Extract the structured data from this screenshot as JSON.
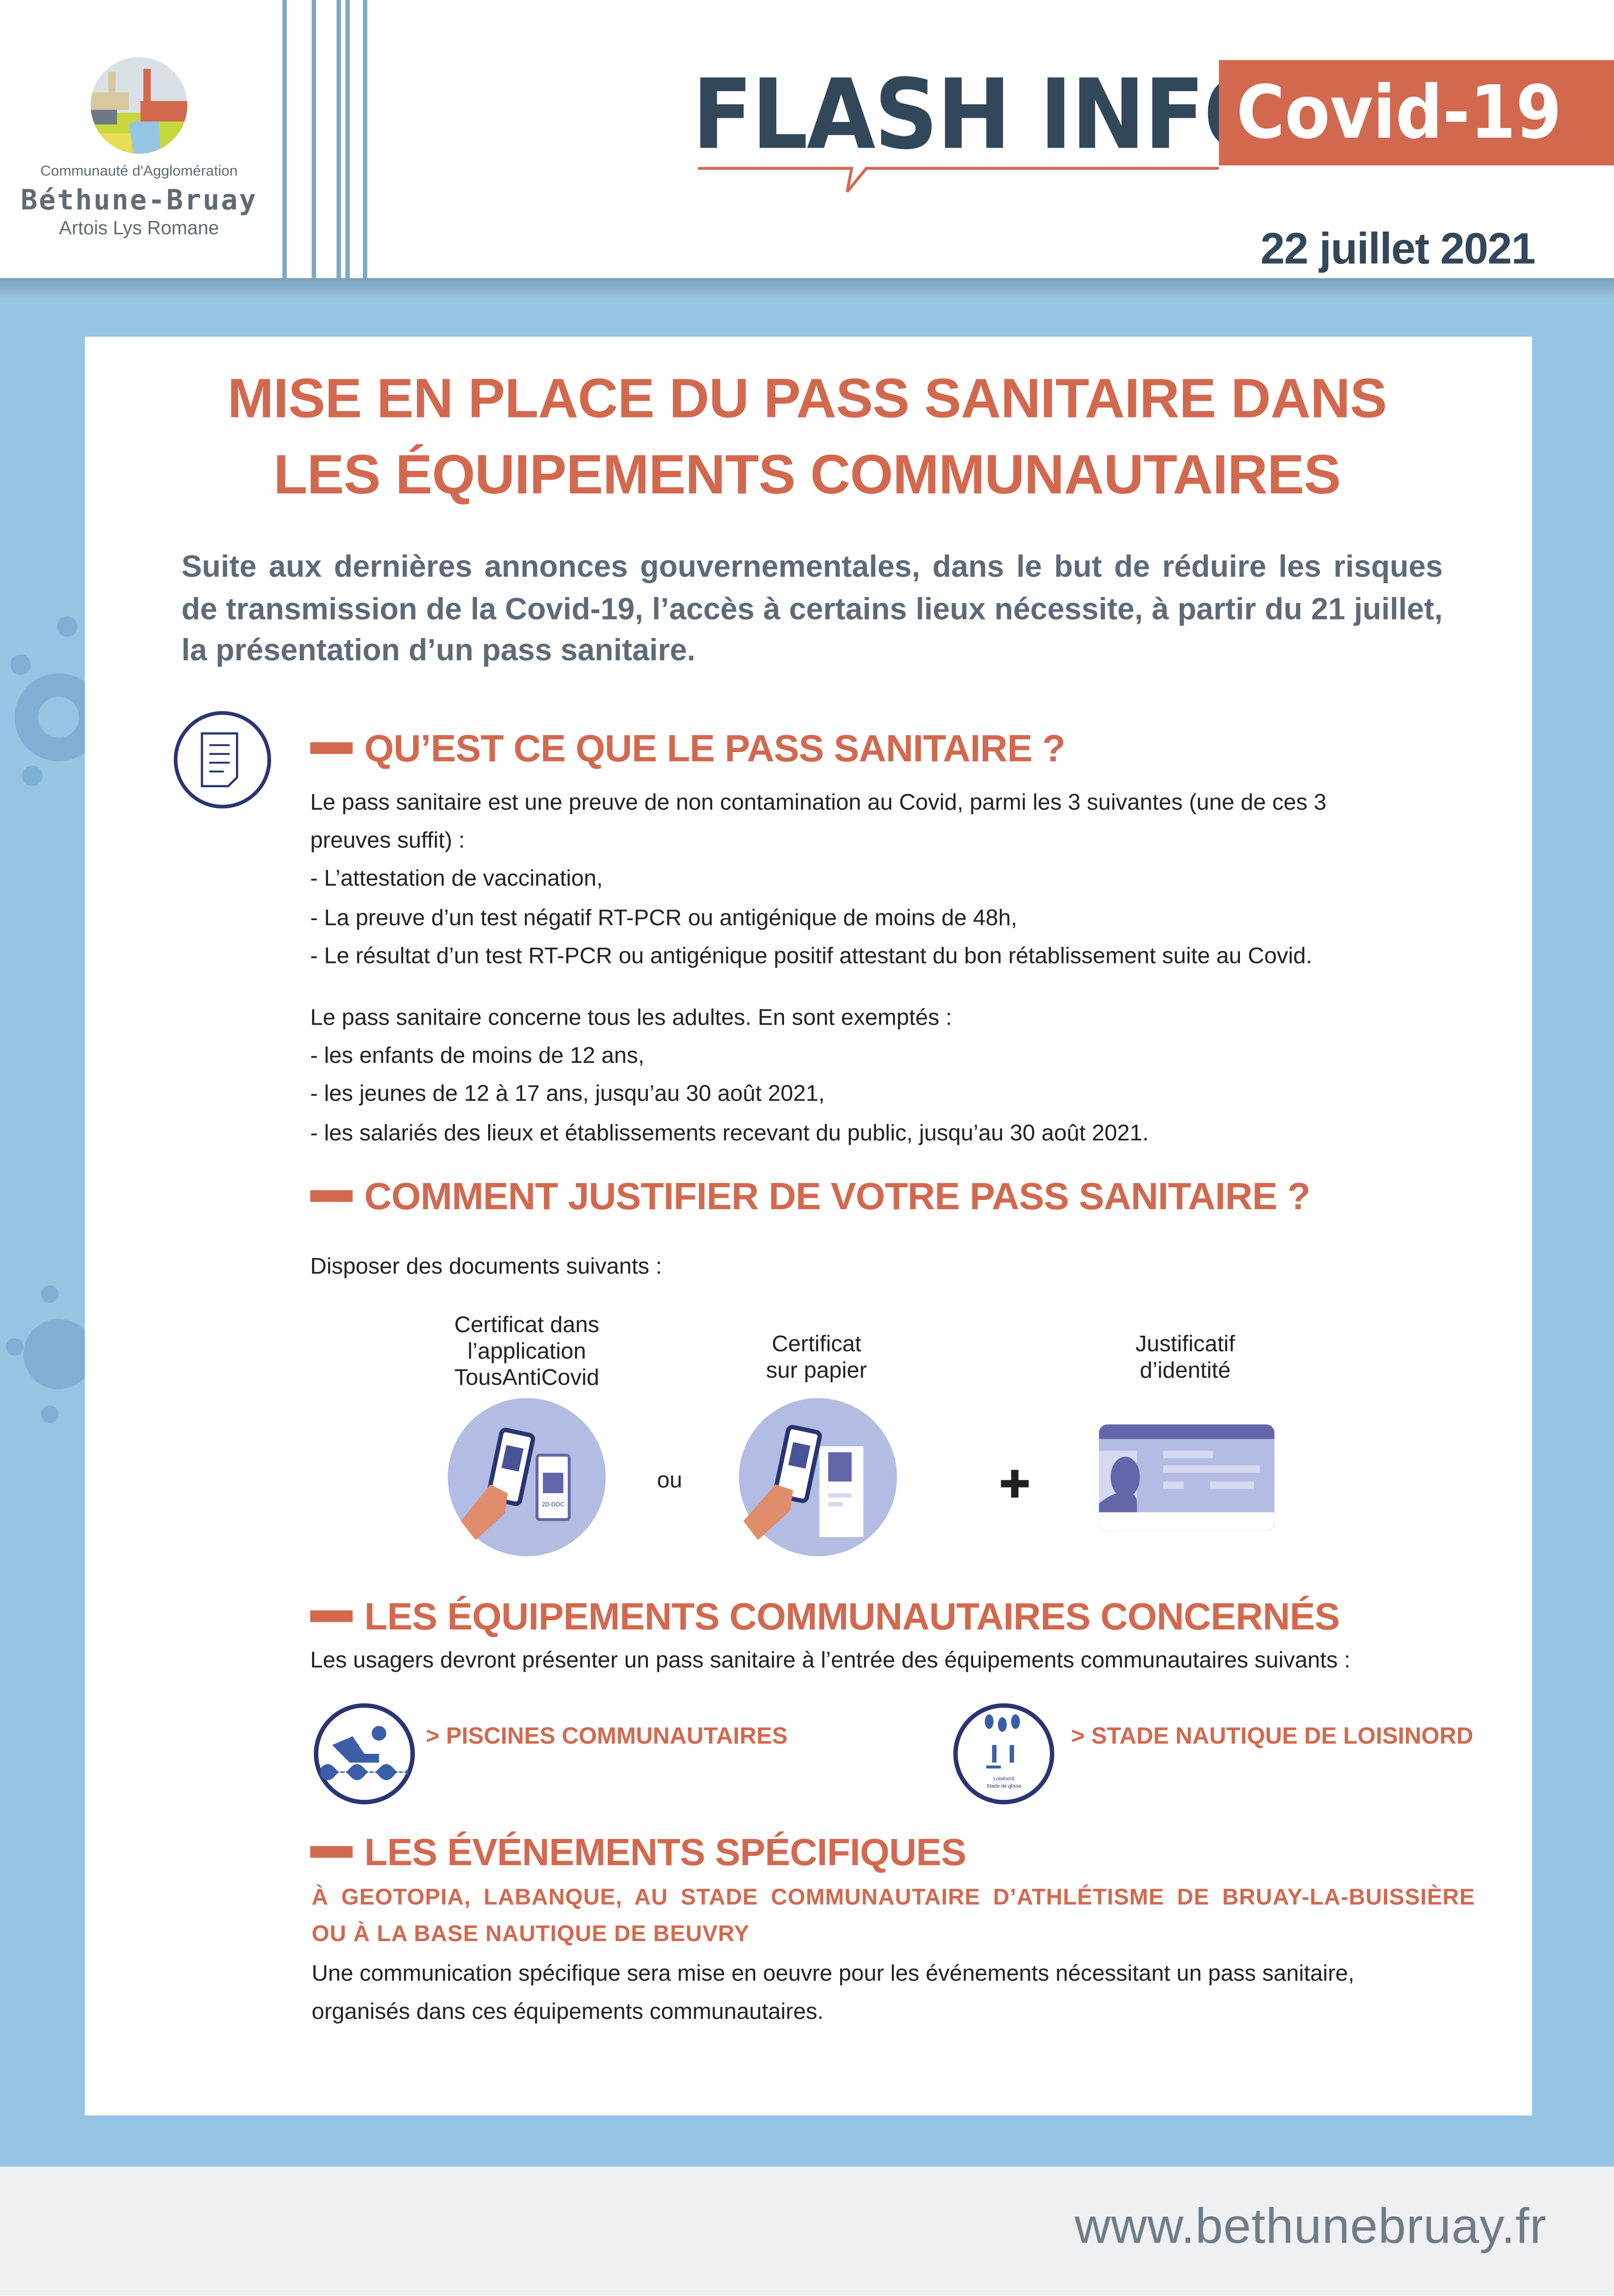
{
  "header": {
    "logo": {
      "line1": "Communauté d'Agglomération",
      "line2": "Béthune-Bruay",
      "line3": "Artois Lys Romane"
    },
    "flash": "FLASH INFO",
    "badge": "Covid-19",
    "date": "22 juillet 2021"
  },
  "colors": {
    "accent": "#d2694f",
    "navy": "#33475a",
    "background": "#95c4e4",
    "illustration": "#b3bce2"
  },
  "title": {
    "line1": "MISE EN PLACE DU PASS SANITAIRE DANS",
    "line2": "LES ÉQUIPEMENTS COMMUNAUTAIRES"
  },
  "intro": "Suite aux dernières annonces gouvernementales, dans le but de réduire les risques de transmission de la Covid-19, l’accès à certains lieux nécessite, à partir du 21 juillet, la présentation d’un pass sanitaire.",
  "s1": {
    "heading": "QU’EST CE QUE LE PASS SANITAIRE ?",
    "icon": "document-icon",
    "lines": [
      "Le pass sanitaire est une preuve de non contamination au Covid, parmi les 3 suivantes (une de ces 3",
      "preuves suffit) :",
      "- L’attestation de vaccination,",
      "- La preuve d’un test négatif RT-PCR ou antigénique de moins de 48h,",
      "- Le résultat d’un test RT-PCR ou antigénique positif attestant du bon rétablissement suite au Covid."
    ],
    "lines2": [
      "Le pass sanitaire concerne tous les adultes. En sont exemptés :",
      "- les enfants de moins de 12 ans,",
      "- les jeunes de 12 à 17 ans, jusqu’au 30 août 2021,",
      "- les salariés des lieux et établissements recevant du public, jusqu’au 30 août 2021."
    ]
  },
  "s2": {
    "heading": "COMMENT JUSTIFIER DE VOTRE PASS SANITAIRE ?",
    "intro": "Disposer des documents suivants :",
    "items": [
      {
        "l1": "Certificat dans",
        "l2": "l’application",
        "l3": "TousAntiCovid",
        "phone_label": "2D-DOC"
      },
      {
        "l1": "Certificat",
        "l2": "sur papier"
      },
      {
        "l1": "Justificatif",
        "l2": "d’identité"
      }
    ],
    "or": "ou",
    "plus": "+"
  },
  "s3": {
    "heading": "LES ÉQUIPEMENTS COMMUNAUTAIRES CONCERNÉS",
    "text": "Les usagers devront présenter un pass sanitaire à l’entrée des équipements communautaires suivants :",
    "items": [
      {
        "label": "> PISCINES COMMUNAUTAIRES",
        "icon": "swimmer-icon"
      },
      {
        "label": "> STADE NAUTIQUE DE LOISINORD",
        "icon": "loisinord-icon",
        "logo_text1": "Loisinord",
        "logo_text2": "Stade de glisse"
      }
    ]
  },
  "s4": {
    "heading": "LES ÉVÉNEMENTS SPÉCIFIQUES",
    "sub1": "À GEOTOPIA, LABANQUE, AU STADE COMMUNAUTAIRE D’ATHLÉTISME DE BRUAY-LA-BUISSIÈRE",
    "sub2": "OU À LA BASE NAUTIQUE DE BEUVRY",
    "lines": [
      "Une communication spécifique sera mise en oeuvre pour les événements nécessitant un pass sanitaire,",
      "organisés dans ces équipements communautaires."
    ]
  },
  "footer": {
    "url": "www.bethunebruay.fr"
  }
}
